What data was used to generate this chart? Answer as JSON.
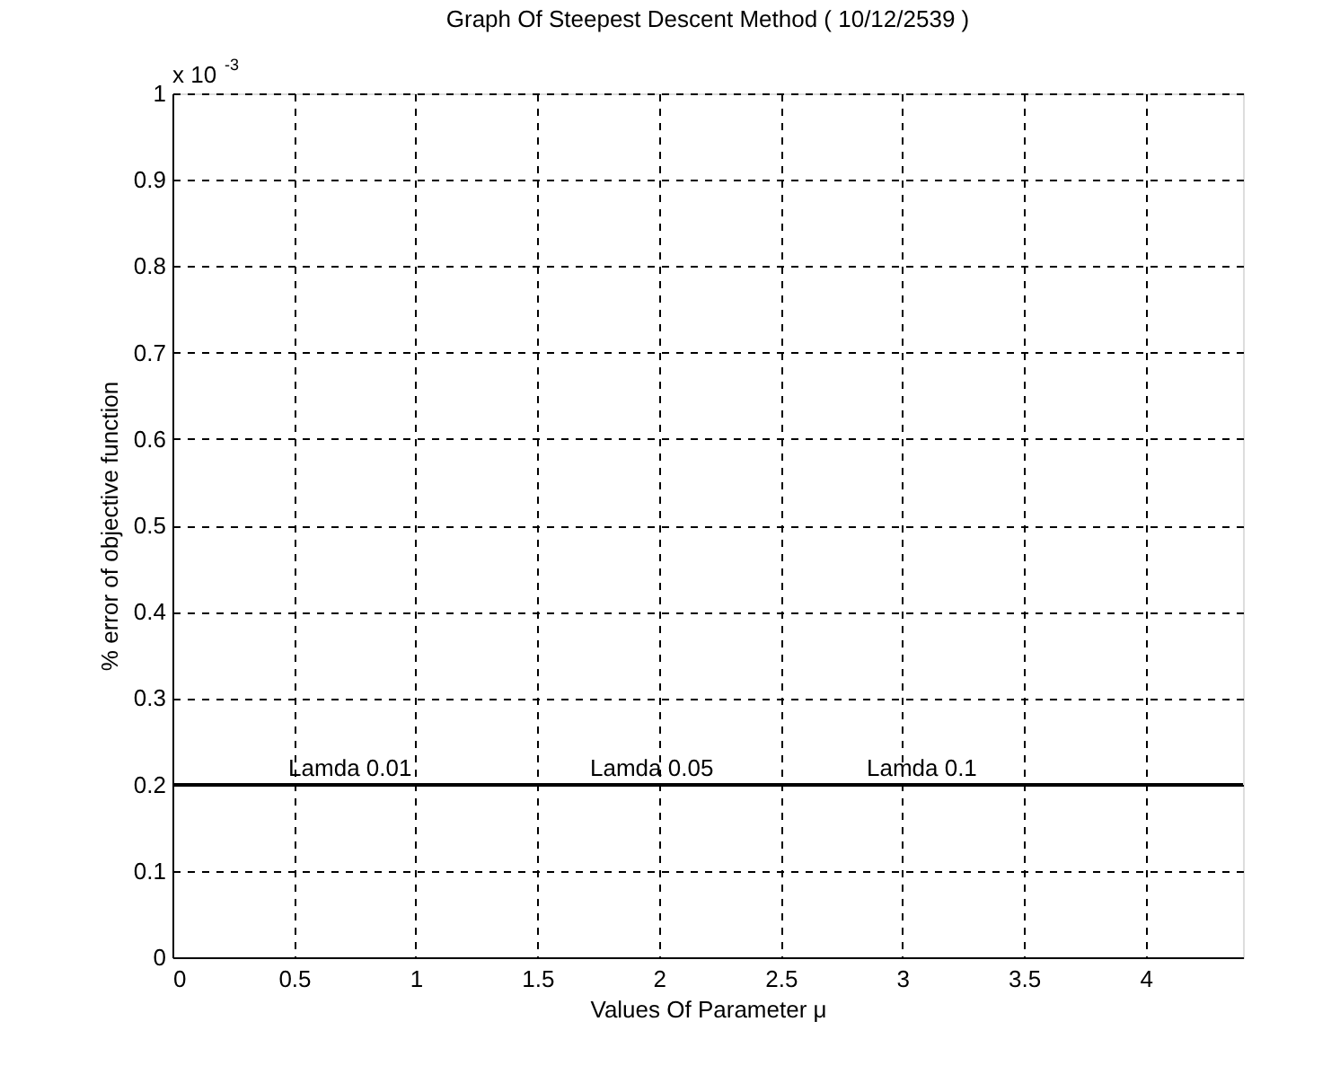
{
  "chart_data": {
    "type": "line",
    "title": "Graph Of Steepest Descent Method ( 10/12/2539 )",
    "xlabel": "Values Of Parameter μ",
    "ylabel": "% error of objective function",
    "x": [
      0,
      4.4
    ],
    "series": [
      {
        "color": "#000000",
        "values": [
          0.2,
          0.2
        ]
      }
    ],
    "xlim": [
      0,
      4.4
    ],
    "xticks": [
      0,
      0.5,
      1,
      1.5,
      2,
      2.5,
      3,
      3.5,
      4
    ],
    "ylim": [
      0,
      1
    ],
    "yticks": [
      0,
      0.1,
      0.2,
      0.3,
      0.4,
      0.5,
      0.6,
      0.7,
      0.8,
      0.9,
      1
    ],
    "annotations": [
      "x 10$^{-3}$",
      {
        "text": "Lamda  0.01",
        "x": 0.73,
        "y": 0.2
      },
      {
        "text": "Lamda  0.05",
        "x": 1.97,
        "y": 0.2
      },
      {
        "text": "Lamda  0.1",
        "x": 3.08,
        "y": 0.2
      }
    ],
    "grid": true,
    "line_style": "solid"
  }
}
